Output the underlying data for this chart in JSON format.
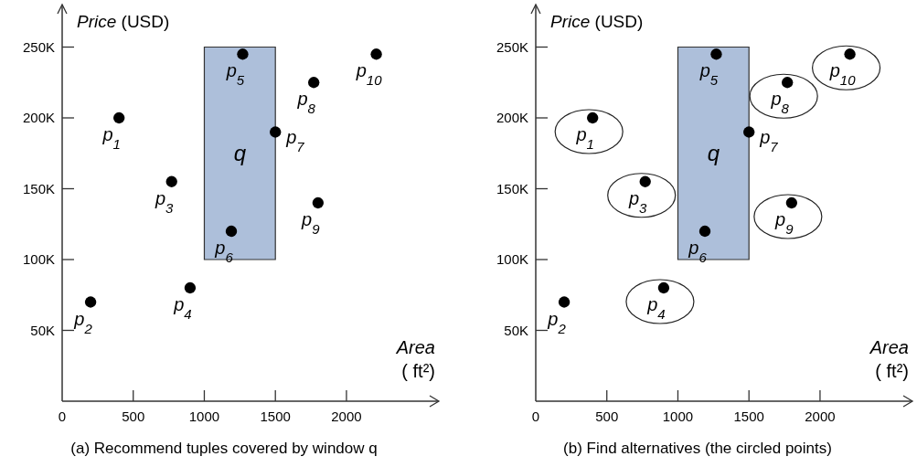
{
  "chart_data": [
    {
      "type": "scatter",
      "title": "(a) Recommend tuples covered by window q",
      "xlabel": "Area\n( ft²)",
      "ylabel": "Price (USD)",
      "xlim": [
        0,
        2650
      ],
      "ylim": [
        0,
        280000
      ],
      "xticks": [
        0,
        500,
        1000,
        1500,
        2000
      ],
      "yticks": [
        {
          "value": 50000,
          "label": "50K"
        },
        {
          "value": 100000,
          "label": "100K"
        },
        {
          "value": 150000,
          "label": "150K"
        },
        {
          "value": 200000,
          "label": "200K"
        },
        {
          "value": 250000,
          "label": "250K"
        }
      ],
      "marker": "circle",
      "series": [
        {
          "type": "area",
          "marker": "none",
          "color": "#adbfda",
          "x": [
            1000,
            1000,
            1500,
            1500
          ],
          "values": [
            100000,
            250000,
            250000,
            100000
          ]
        },
        {
          "color": "#000000",
          "x": [
            400,
            200,
            770,
            900,
            1270,
            1190,
            1500,
            1770,
            1800,
            2210
          ],
          "values": [
            200000,
            70000,
            155000,
            80000,
            245000,
            120000,
            190000,
            225000,
            140000,
            245000
          ]
        }
      ],
      "annotations": [
        "q",
        {
          "text": "p$_{1}$",
          "x": 400,
          "y": 200000
        },
        {
          "text": "p$_{2}$",
          "x": 200,
          "y": 70000
        },
        {
          "text": "p$_{3}$",
          "x": 770,
          "y": 155000
        },
        {
          "text": "p$_{4}$",
          "x": 900,
          "y": 80000
        },
        {
          "text": "p$_{5}$",
          "x": 1270,
          "y": 245000
        },
        {
          "text": "p$_{6}$",
          "x": 1190,
          "y": 120000
        },
        {
          "text": "p$_{7}$",
          "x": 1500,
          "y": 190000
        },
        {
          "text": "p$_{8}$",
          "x": 1770,
          "y": 225000
        },
        {
          "text": "p$_{9}$",
          "x": 1800,
          "y": 140000
        },
        {
          "text": "p$_{10}$",
          "x": 2210,
          "y": 245000
        }
      ]
    },
    {
      "type": "scatter",
      "title": "(b) Find alternatives (the circled points)",
      "xlabel": "Area\n( ft²)",
      "ylabel": "Price (USD)",
      "xlim": [
        0,
        2650
      ],
      "ylim": [
        0,
        280000
      ],
      "xticks": [
        0,
        500,
        1000,
        1500,
        2000
      ],
      "yticks": [
        {
          "value": 50000,
          "label": "50K"
        },
        {
          "value": 100000,
          "label": "100K"
        },
        {
          "value": 150000,
          "label": "150K"
        },
        {
          "value": 200000,
          "label": "200K"
        },
        {
          "value": 250000,
          "label": "250K"
        }
      ],
      "marker": "circle",
      "series": [
        {
          "type": "area",
          "marker": "none",
          "color": "#adbfda",
          "x": [
            1000,
            1000,
            1500,
            1500
          ],
          "values": [
            100000,
            250000,
            250000,
            100000
          ]
        },
        {
          "color": "#000000",
          "x": [
            200,
            1270,
            1190,
            1500
          ],
          "values": [
            70000,
            245000,
            120000,
            190000
          ]
        },
        {
          "color": "#000000",
          "x": [
            400,
            770,
            900,
            1770,
            1800,
            2210
          ],
          "values": [
            200000,
            155000,
            80000,
            225000,
            140000,
            245000
          ]
        }
      ],
      "annotations": [
        "q",
        {
          "text": "p$_{1}$",
          "x": 400,
          "y": 200000
        },
        {
          "text": "p$_{2}$",
          "x": 200,
          "y": 70000
        },
        {
          "text": "p$_{3}$",
          "x": 770,
          "y": 155000
        },
        {
          "text": "p$_{4}$",
          "x": 900,
          "y": 80000
        },
        {
          "text": "p$_{5}$",
          "x": 1270,
          "y": 245000
        },
        {
          "text": "p$_{6}$",
          "x": 1190,
          "y": 120000
        },
        {
          "text": "p$_{7}$",
          "x": 1500,
          "y": 190000
        },
        {
          "text": "p$_{8}$",
          "x": 1770,
          "y": 225000
        },
        {
          "text": "p$_{9}$",
          "x": 1800,
          "y": 140000
        },
        {
          "text": "p$_{10}$",
          "x": 2210,
          "y": 245000
        }
      ]
    }
  ]
}
